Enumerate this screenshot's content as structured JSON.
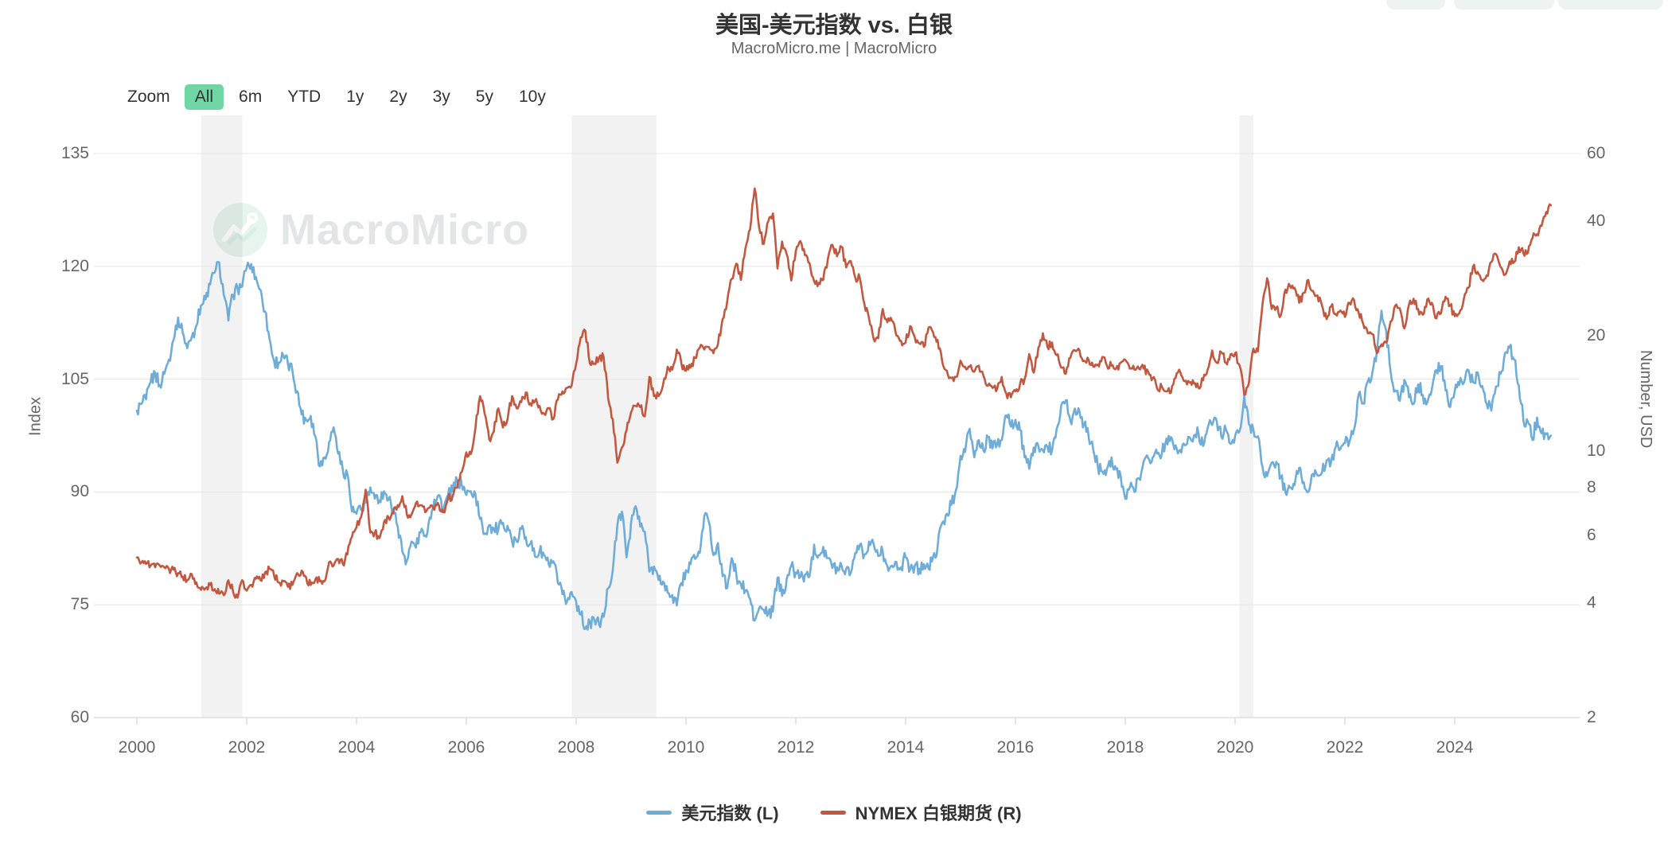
{
  "page": {
    "title": "美国-美元指数 vs. 白银",
    "subtitle": "MacroMicro.me | MacroMicro",
    "watermark": "MacroMicro"
  },
  "toolbar": {
    "zoom_label": "Zoom",
    "buttons": [
      "All",
      "6m",
      "YTD",
      "1y",
      "2y",
      "3y",
      "5y",
      "10y"
    ],
    "active": "All",
    "active_bg": "#71d6a6"
  },
  "legend": [
    {
      "label": "美元指数 (L)",
      "color": "#6FADD8"
    },
    {
      "label": "NYMEX 白银期货 (R)",
      "color": "#C25840"
    }
  ],
  "chart_data": {
    "type": "line",
    "title": "美国-美元指数 vs. 白银",
    "subtitle": "MacroMicro.me | MacroMicro",
    "grid": "horizontal-only",
    "x_axis": {
      "unit": "year-month",
      "start_year": 2000,
      "step_months": 1,
      "end": "2025-10",
      "tick_years": [
        2000,
        2002,
        2004,
        2006,
        2008,
        2010,
        2012,
        2014,
        2016,
        2018,
        2020,
        2022,
        2024
      ]
    },
    "y_left": {
      "label": "Index",
      "scale": "linear",
      "min": 60,
      "max": 135,
      "ticks": [
        60,
        75,
        90,
        105,
        120,
        135
      ]
    },
    "y_right": {
      "label": "Number, USD",
      "scale": "log",
      "min": 2,
      "max": 60,
      "ticks": [
        2,
        4,
        6,
        8,
        10,
        20,
        40,
        60
      ]
    },
    "recession_bands": [
      [
        2001.17,
        2001.92
      ],
      [
        2007.92,
        2009.46
      ],
      [
        2020.08,
        2020.33
      ]
    ],
    "series": [
      {
        "name": "美元指数 (L)",
        "axis": "left",
        "color": "#6FADD8",
        "monthly_values": [
          100.8,
          101.7,
          102.3,
          104.6,
          105.8,
          104.2,
          105.7,
          107.6,
          110.2,
          113.2,
          111.2,
          109.1,
          110.6,
          112.1,
          114.8,
          115.6,
          117.6,
          119.2,
          120.5,
          116.2,
          112.8,
          116.2,
          117.1,
          117.3,
          119.8,
          120.3,
          118.6,
          116.9,
          114.0,
          110.3,
          107.4,
          107.2,
          108.1,
          107.0,
          106.1,
          103.4,
          100.3,
          99.6,
          100.1,
          97.4,
          93.4,
          94.6,
          96.6,
          98.6,
          95.1,
          92.9,
          92.4,
          87.4,
          87.1,
          87.6,
          88.6,
          90.6,
          89.1,
          88.9,
          90.1,
          89.0,
          87.7,
          85.4,
          82.1,
          80.9,
          83.4,
          82.6,
          84.6,
          84.2,
          86.6,
          89.0,
          89.6,
          87.6,
          89.6,
          90.1,
          91.6,
          90.9,
          89.6,
          90.1,
          89.7,
          86.4,
          84.4,
          85.6,
          85.1,
          85.0,
          85.9,
          85.5,
          83.4,
          83.4,
          85.1,
          84.0,
          83.1,
          81.4,
          82.1,
          81.6,
          80.4,
          80.8,
          77.9,
          76.4,
          75.4,
          76.7,
          75.4,
          73.7,
          71.8,
          72.7,
          72.9,
          72.4,
          73.4,
          77.2,
          79.6,
          85.6,
          87.4,
          81.3,
          85.9,
          88.1,
          85.4,
          84.7,
          79.4,
          80.1,
          78.3,
          78.1,
          76.6,
          76.3,
          74.9,
          77.9,
          79.6,
          80.4,
          81.1,
          81.9,
          86.8,
          86.0,
          81.6,
          83.2,
          78.8,
          77.2,
          81.2,
          79.0,
          77.7,
          76.9,
          75.8,
          72.9,
          74.6,
          74.3,
          73.9,
          74.1,
          78.6,
          76.2,
          78.4,
          80.2,
          79.3,
          78.7,
          79.0,
          78.8,
          83.0,
          81.6,
          82.7,
          81.2,
          79.9,
          80.0,
          80.2,
          79.8,
          79.2,
          81.9,
          83.0,
          81.7,
          83.4,
          83.1,
          81.5,
          82.1,
          80.2,
          80.2,
          80.7,
          80.0,
          81.3,
          79.7,
          80.2,
          79.8,
          80.4,
          79.8,
          81.4,
          82.7,
          85.9,
          87.1,
          88.3,
          90.3,
          94.8,
          95.3,
          98.4,
          94.6,
          96.9,
          95.5,
          97.3,
          95.8,
          96.3,
          96.9,
          100.2,
          98.7,
          99.6,
          98.2,
          94.6,
          93.1,
          95.9,
          96.1,
          95.5,
          96.0,
          95.5,
          98.4,
          101.5,
          102.2,
          99.5,
          101.1,
          100.7,
          99.0,
          97.3,
          95.6,
          93.4,
          92.7,
          93.1,
          94.6,
          93.0,
          92.1,
          89.1,
          90.6,
          90.0,
          91.8,
          94.0,
          94.5,
          94.6,
          95.1,
          95.1,
          97.1,
          97.3,
          96.2,
          95.6,
          96.2,
          97.3,
          97.5,
          97.8,
          96.1,
          98.5,
          98.9,
          99.4,
          97.3,
          98.3,
          96.4,
          97.4,
          98.1,
          102.8,
          99.0,
          98.3,
          97.4,
          93.3,
          92.1,
          93.9,
          94.0,
          91.9,
          89.9,
          90.6,
          90.9,
          93.2,
          91.3,
          90.0,
          92.4,
          92.2,
          92.6,
          94.2,
          94.1,
          96.0,
          95.7,
          96.5,
          96.7,
          98.3,
          103.0,
          101.8,
          104.7,
          105.9,
          108.8,
          114.1,
          111.5,
          106.0,
          103.5,
          102.1,
          104.9,
          102.6,
          101.7,
          104.3,
          102.9,
          101.9,
          103.6,
          106.2,
          106.7,
          103.5,
          101.3,
          103.4,
          104.2,
          104.5,
          106.2,
          104.6,
          105.9,
          104.1,
          101.7,
          100.8,
          104.0,
          105.7,
          108.5,
          109.2,
          107.6,
          104.2,
          99.5,
          99.3,
          96.9,
          99.9,
          97.8,
          97.7,
          97.5
        ]
      },
      {
        "name": "NYMEX 白银期货 (R)",
        "axis": "right",
        "color": "#C25840",
        "monthly_values": [
          5.25,
          5.1,
          5.05,
          5.0,
          4.95,
          5.0,
          4.95,
          4.9,
          4.88,
          4.78,
          4.68,
          4.58,
          4.75,
          4.52,
          4.32,
          4.36,
          4.45,
          4.34,
          4.22,
          4.18,
          4.58,
          4.28,
          4.12,
          4.58,
          4.3,
          4.45,
          4.62,
          4.58,
          4.8,
          4.9,
          4.7,
          4.52,
          4.55,
          4.4,
          4.45,
          4.78,
          4.85,
          4.65,
          4.45,
          4.6,
          4.55,
          4.55,
          5.1,
          5.0,
          5.2,
          5.05,
          5.35,
          5.95,
          6.3,
          6.7,
          7.9,
          6.1,
          6.1,
          5.9,
          6.5,
          6.7,
          6.85,
          7.2,
          7.6,
          6.8,
          6.8,
          7.3,
          7.2,
          6.9,
          7.1,
          7.0,
          7.2,
          6.9,
          7.5,
          7.6,
          8.0,
          8.8,
          9.9,
          9.8,
          11.5,
          13.9,
          12.5,
          10.7,
          11.2,
          12.9,
          11.5,
          12.1,
          13.9,
          12.9,
          13.4,
          14.2,
          13.3,
          13.5,
          13.1,
          12.5,
          12.9,
          12.1,
          13.6,
          14.3,
          14.6,
          14.8,
          16.9,
          19.8,
          20.6,
          16.9,
          16.9,
          17.5,
          17.6,
          13.7,
          12.1,
          9.3,
          10.2,
          11.3,
          12.6,
          13.1,
          13.0,
          12.3,
          15.6,
          13.9,
          13.9,
          14.9,
          16.6,
          16.3,
          18.4,
          16.9,
          16.2,
          16.5,
          17.5,
          18.6,
          18.4,
          18.7,
          18.0,
          19.0,
          22.1,
          24.6,
          28.2,
          30.9,
          28.0,
          33.9,
          37.9,
          48.6,
          38.3,
          34.8,
          39.9,
          41.8,
          30.0,
          35.3,
          32.7,
          27.9,
          33.3,
          35.4,
          32.5,
          31.0,
          27.8,
          27.5,
          28.0,
          31.7,
          34.6,
          32.3,
          34.2,
          30.2,
          31.4,
          28.4,
          28.3,
          24.2,
          22.2,
          19.6,
          19.7,
          23.5,
          21.7,
          21.9,
          20.0,
          19.4,
          19.2,
          21.2,
          19.8,
          19.1,
          18.7,
          21.0,
          20.4,
          19.5,
          17.1,
          16.2,
          15.5,
          15.6,
          17.2,
          16.6,
          16.6,
          16.1,
          16.7,
          15.7,
          14.8,
          14.6,
          14.5,
          15.6,
          14.1,
          13.8,
          14.3,
          14.9,
          15.4,
          17.9,
          16.0,
          18.6,
          20.3,
          18.7,
          19.2,
          17.8,
          16.5,
          15.9,
          17.5,
          18.3,
          18.3,
          17.2,
          17.3,
          16.6,
          16.8,
          17.6,
          16.7,
          16.7,
          16.4,
          17.0,
          17.3,
          16.4,
          16.3,
          16.4,
          16.4,
          16.1,
          15.5,
          14.5,
          14.7,
          14.3,
          14.2,
          15.5,
          16.1,
          15.2,
          15.1,
          15.0,
          14.6,
          15.3,
          16.3,
          18.3,
          17.0,
          18.1,
          17.0,
          17.9,
          18.0,
          16.7,
          14.0,
          15.0,
          18.5,
          18.2,
          24.2,
          28.3,
          23.5,
          23.7,
          22.6,
          26.4,
          27.0,
          26.7,
          24.4,
          25.9,
          28.0,
          26.2,
          25.5,
          24.0,
          22.1,
          23.9,
          22.8,
          23.3,
          22.4,
          24.4,
          24.8,
          23.0,
          21.5,
          20.3,
          20.2,
          18.0,
          19.0,
          19.2,
          21.8,
          24.0,
          23.6,
          20.9,
          24.1,
          25.0,
          23.5,
          22.7,
          24.9,
          24.4,
          22.2,
          22.9,
          25.3,
          24.0,
          22.5,
          22.9,
          25.0,
          26.7,
          30.4,
          29.4,
          28.0,
          28.8,
          31.2,
          32.7,
          30.3,
          28.9,
          31.3,
          31.2,
          34.1,
          32.9,
          33.0,
          36.1,
          36.9,
          38.8,
          42.2,
          43.9
        ]
      }
    ]
  }
}
